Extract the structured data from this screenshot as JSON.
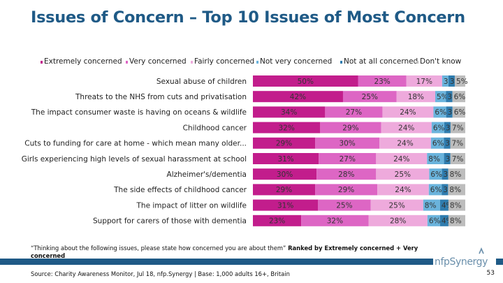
{
  "title": "Issues of Concern – Top 10 Issues of Most Concern",
  "chart_data": {
    "type": "bar",
    "orientation": "horizontal",
    "stacked": true,
    "percent": true,
    "legend_position": "top",
    "categories": [
      "Sexual abuse of children",
      "Threats to the NHS from cuts and privatisation",
      "The impact consumer waste is having on oceans & wildlife",
      "Childhood cancer",
      "Cuts to funding for care at home - which mean many older...",
      "Girls experiencing high levels of sexual harassment at school",
      "Alzheimer's/dementia",
      "The side effects of childhood cancer",
      "The impact of litter on wildlife",
      "Support for carers of those with dementia"
    ],
    "series": [
      {
        "name": "Extremely concerned",
        "color": "#c21d8c",
        "values": [
          50,
          42,
          34,
          32,
          29,
          31,
          30,
          29,
          31,
          23
        ],
        "labels": [
          "50%",
          "42%",
          "34%",
          "32%",
          "29%",
          "31%",
          "30%",
          "29%",
          "31%",
          "23%"
        ]
      },
      {
        "name": "Very concerned",
        "color": "#dd66c4",
        "values": [
          23,
          25,
          27,
          29,
          30,
          27,
          28,
          29,
          25,
          32
        ],
        "labels": [
          "23%",
          "25%",
          "27%",
          "29%",
          "30%",
          "27%",
          "28%",
          "29%",
          "25%",
          "32%"
        ]
      },
      {
        "name": "Fairly concerned",
        "color": "#eeaadc",
        "values": [
          17,
          18,
          24,
          24,
          24,
          24,
          25,
          24,
          25,
          28
        ],
        "labels": [
          "17%",
          "18%",
          "24%",
          "24%",
          "24%",
          "24%",
          "25%",
          "24%",
          "25%",
          "28%"
        ]
      },
      {
        "name": "Not very concerned",
        "color": "#6ab3dc",
        "values": [
          3,
          5,
          6,
          6,
          6,
          8,
          6,
          6,
          8,
          6
        ],
        "labels": [
          "3%",
          "5%",
          "6%",
          "6%",
          "6%",
          "8%",
          "6%",
          "6%",
          "8%",
          "6%"
        ]
      },
      {
        "name": "Not at all concerned",
        "color": "#2f7cae",
        "values": [
          3,
          3,
          3,
          3,
          3,
          3,
          3,
          3,
          4,
          4
        ],
        "labels": [
          "3%",
          "3%",
          "3%",
          "3%",
          "3%",
          "3%",
          "3%",
          "3%",
          "4%",
          "4%"
        ]
      },
      {
        "name": "Don't know",
        "color": "#bdbdbd",
        "values": [
          5,
          6,
          6,
          7,
          7,
          7,
          8,
          8,
          8,
          8
        ],
        "labels": [
          "5%",
          "6%",
          "6%",
          "7%",
          "7%",
          "7%",
          "8%",
          "8%",
          "8%",
          "8%"
        ]
      }
    ],
    "xlim": [
      0,
      100
    ]
  },
  "footnote": {
    "quote": "“Thinking about the following issues, please state how concerned you are about them”",
    "ranking": "Ranked by Extremely concerned + Very concerned"
  },
  "logo_text": "nfpSynergy",
  "source": "Source: Charity Awareness Monitor, Jul 18, nfp.Synergy | Base: 1,000 adults 16+, Britain",
  "page_number": "53",
  "colors": {
    "title": "#1f5a86",
    "band": "#1f5a86",
    "logo": "#6a8fab"
  }
}
